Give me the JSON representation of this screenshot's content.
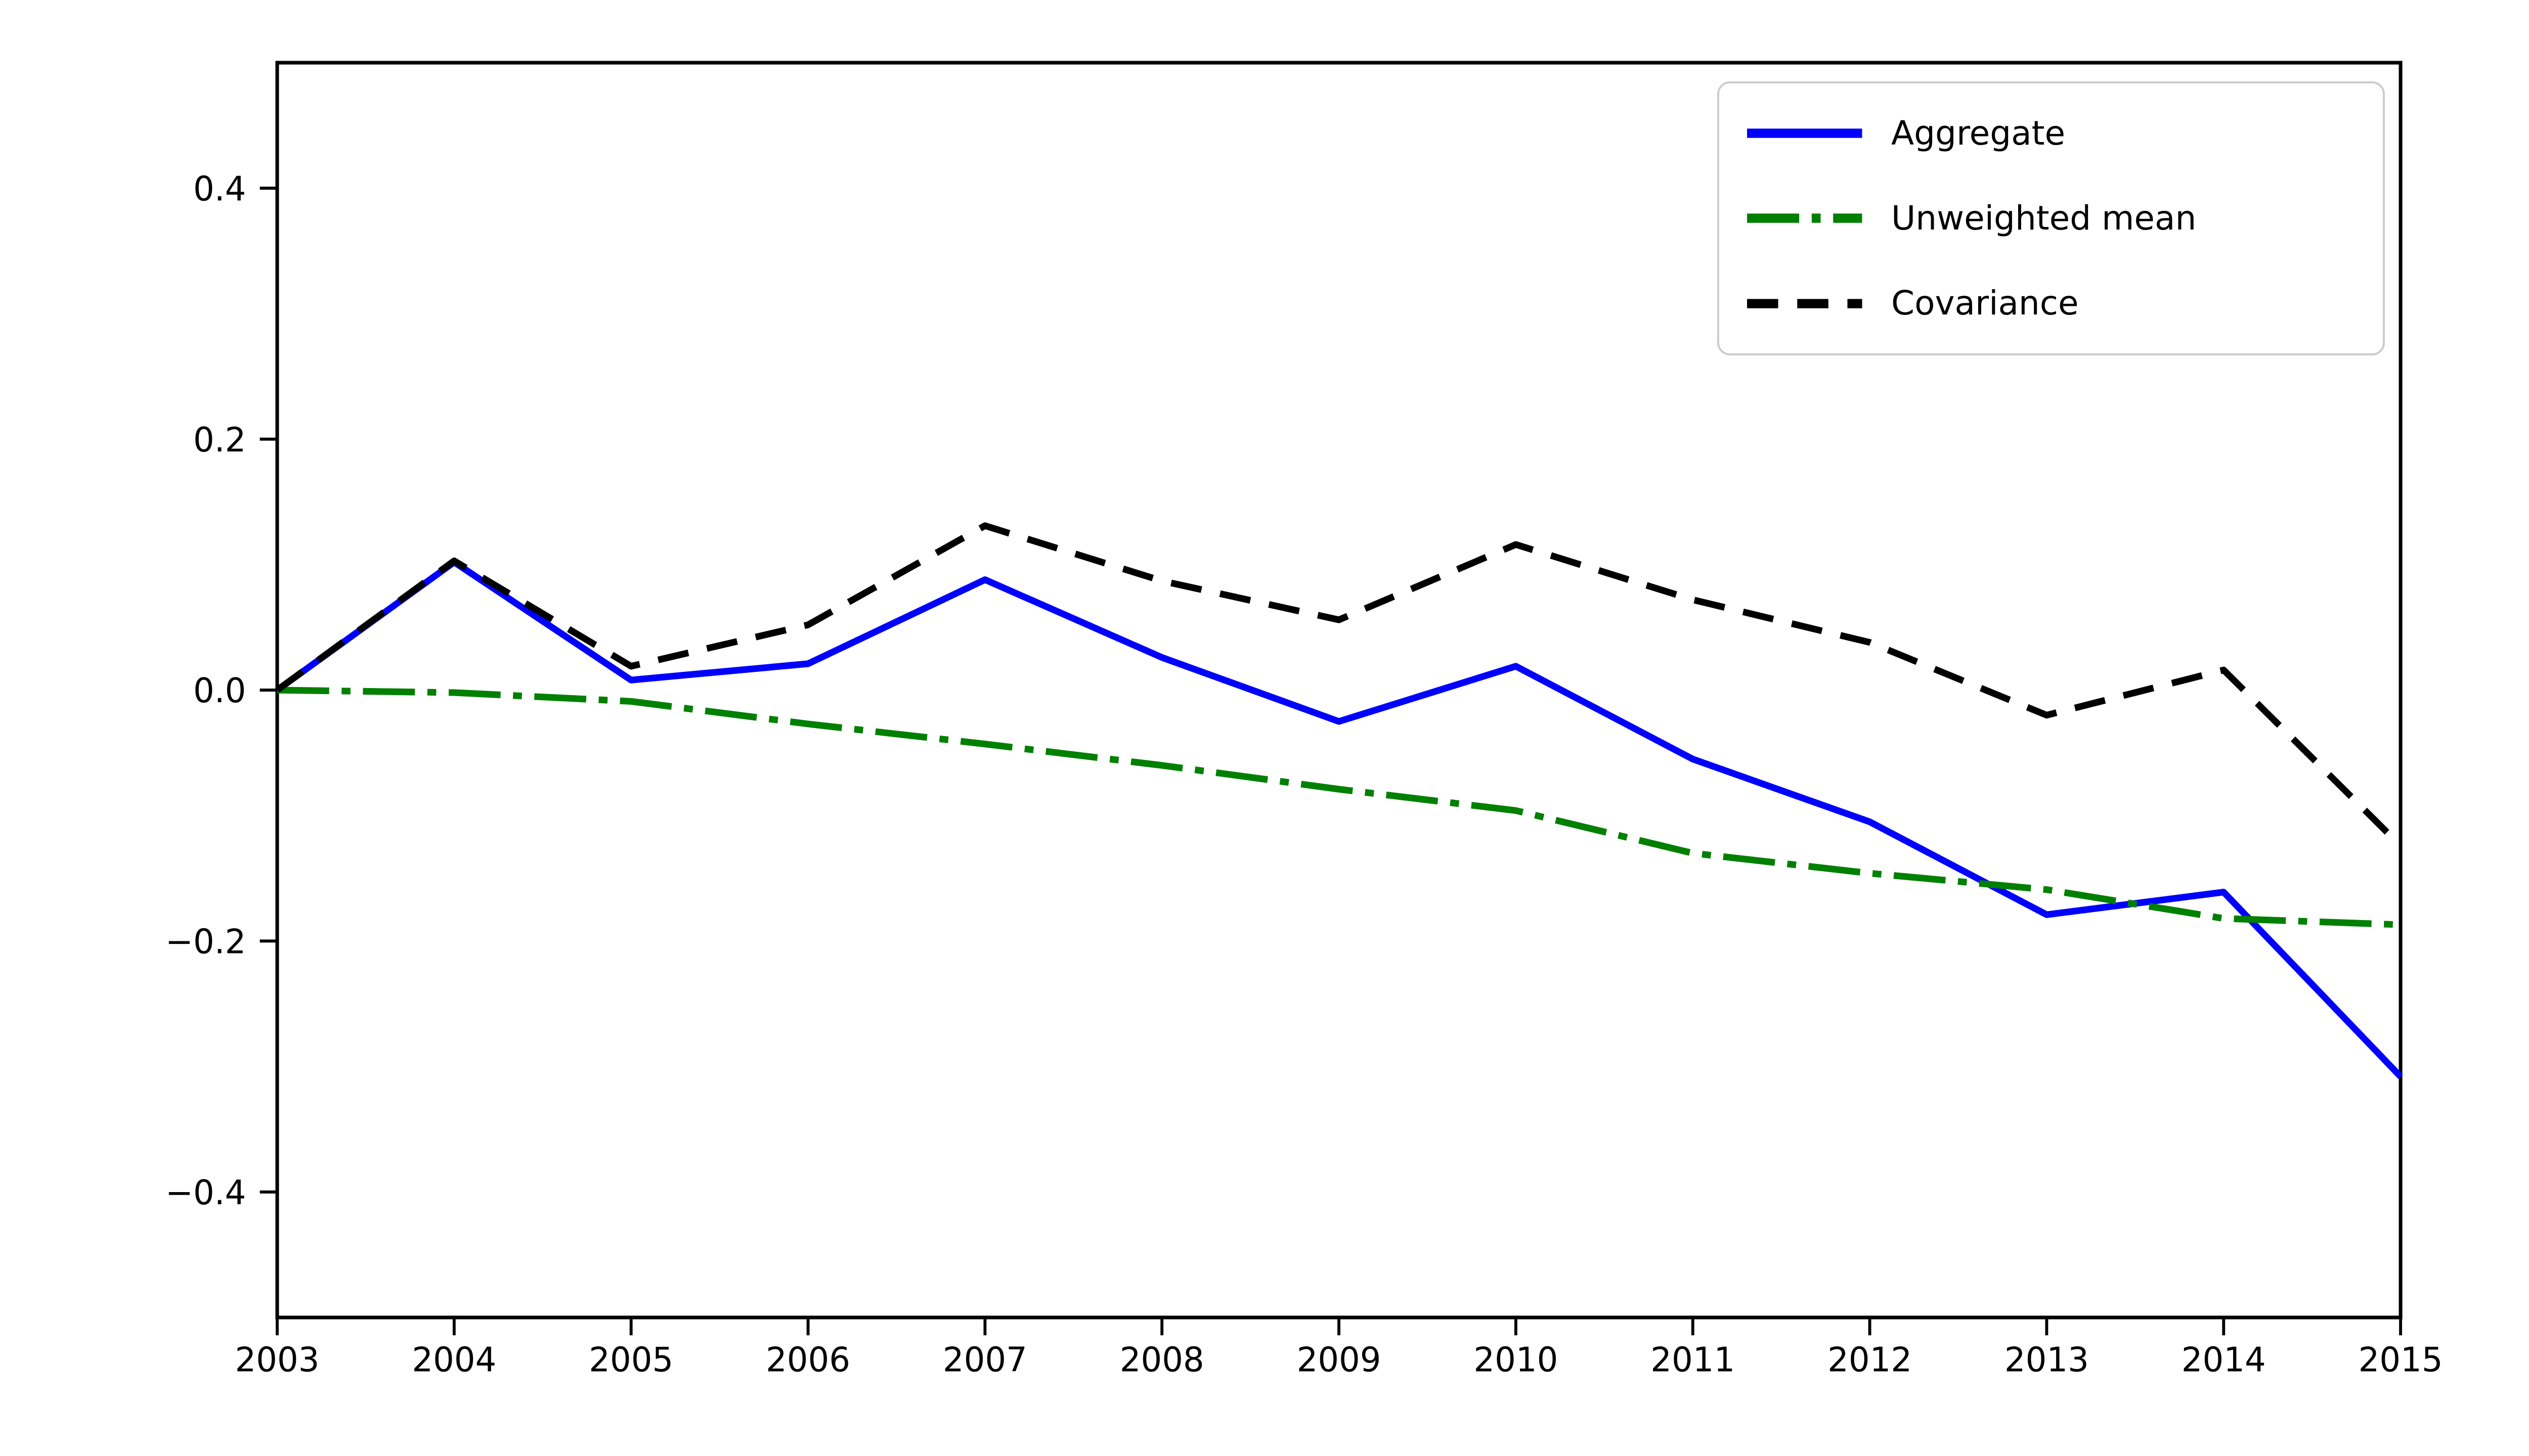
{
  "figure": {
    "background": "#ffffff",
    "text_color": "#000000",
    "spine_color": "#000000"
  },
  "chart_data": {
    "type": "line",
    "title": "",
    "xlabel": "",
    "ylabel": "",
    "grid": false,
    "legend_position": "upper right",
    "xlim": [
      2003,
      2015
    ],
    "ylim": [
      -0.5,
      0.5
    ],
    "x": [
      2003,
      2004,
      2005,
      2006,
      2007,
      2008,
      2009,
      2010,
      2011,
      2012,
      2013,
      2014,
      2015
    ],
    "xtick_labels": [
      "2003",
      "2004",
      "2005",
      "2006",
      "2007",
      "2008",
      "2009",
      "2010",
      "2011",
      "2012",
      "2013",
      "2014",
      "2015"
    ],
    "ytick_values": [
      0.4,
      0.2,
      0.0,
      -0.2,
      -0.4
    ],
    "ytick_labels": [
      "0.4",
      "0.2",
      "0.0",
      "−0.2",
      "−0.4"
    ],
    "series": [
      {
        "name": "Aggregate",
        "color": "#0000ff",
        "style": "solid",
        "values": [
          0.0,
          0.102,
          0.008,
          0.021,
          0.088,
          0.026,
          -0.025,
          0.019,
          -0.055,
          -0.105,
          -0.179,
          -0.161,
          -0.308
        ]
      },
      {
        "name": "Unweighted mean",
        "color": "#008000",
        "style": "dashdot",
        "values": [
          0.0,
          -0.002,
          -0.009,
          -0.027,
          -0.043,
          -0.06,
          -0.079,
          -0.096,
          -0.13,
          -0.146,
          -0.159,
          -0.182,
          -0.187
        ]
      },
      {
        "name": "Covariance",
        "color": "#000000",
        "style": "dashed",
        "values": [
          0.0,
          0.103,
          0.019,
          0.052,
          0.131,
          0.087,
          0.056,
          0.116,
          0.072,
          0.038,
          -0.02,
          0.016,
          -0.124
        ]
      }
    ]
  }
}
